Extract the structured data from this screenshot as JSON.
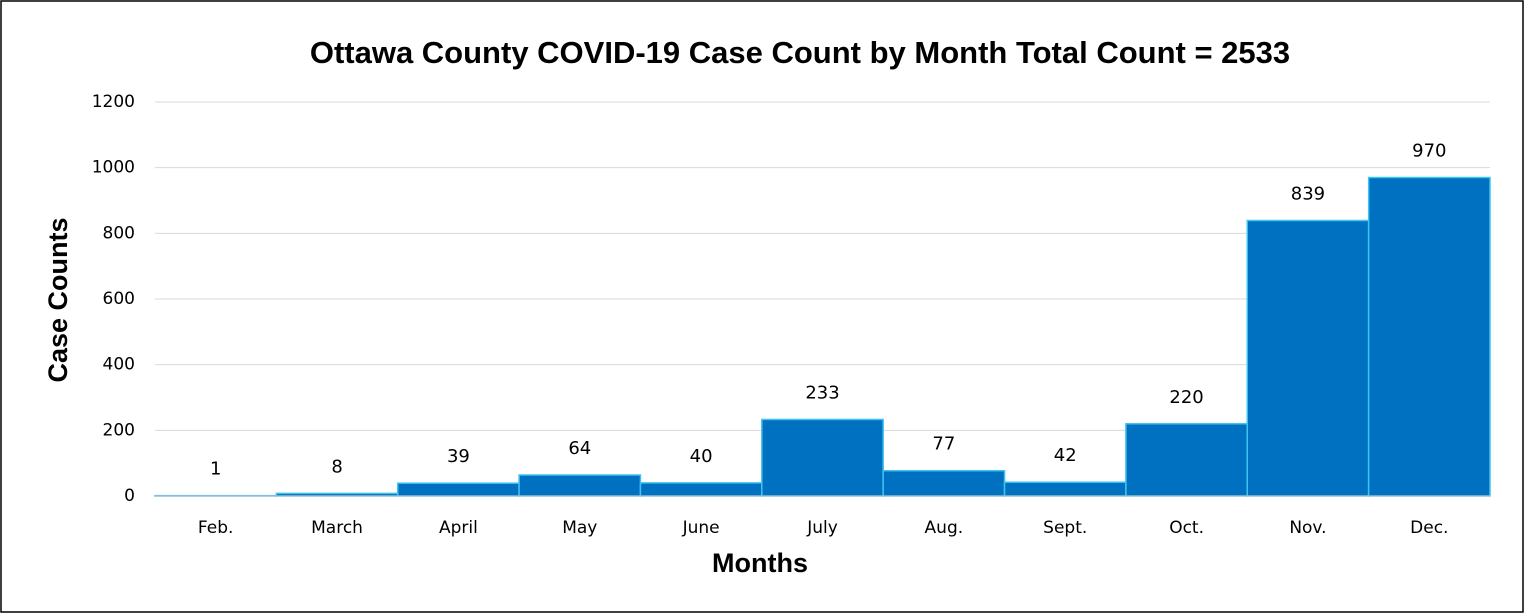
{
  "chart_data": {
    "type": "bar",
    "title": "Ottawa County COVID-19 Case Count by Month Total Count = 2533",
    "x_label": "Months",
    "y_label": "Case Counts",
    "categories": [
      "Feb.",
      "March",
      "April",
      "May",
      "June",
      "July",
      "Aug.",
      "Sept.",
      "Oct.",
      "Nov.",
      "Dec."
    ],
    "values": [
      1,
      8,
      39,
      64,
      40,
      233,
      77,
      42,
      220,
      839,
      970
    ],
    "color": "#0070c0",
    "ylim": [
      0,
      1200
    ],
    "yticks": [
      0,
      200,
      400,
      600,
      800,
      1000,
      1200
    ],
    "grid": true
  }
}
